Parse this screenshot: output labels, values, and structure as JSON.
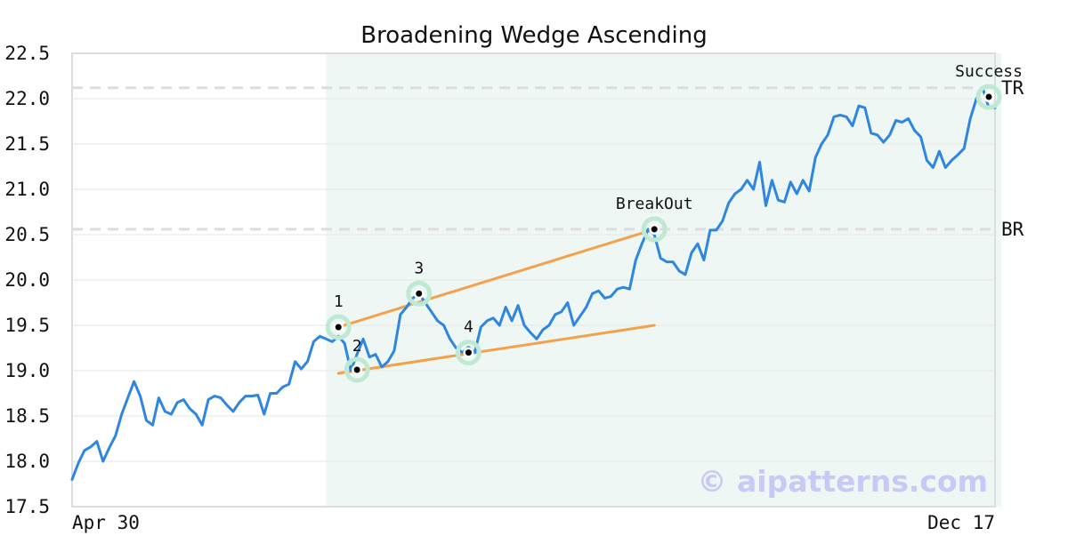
{
  "chart_data": {
    "type": "line",
    "title": "Broadening Wedge Ascending",
    "xlabel": "",
    "ylabel": "",
    "ylim": [
      17.5,
      22.5
    ],
    "yticks": [
      "17.5",
      "18.0",
      "18.5",
      "19.0",
      "19.5",
      "20.0",
      "20.5",
      "21.0",
      "21.5",
      "22.0",
      "22.5"
    ],
    "x_labels": {
      "start": "Apr 30",
      "end": "Dec 17"
    },
    "grid": "horizontal",
    "colors": {
      "price_line": "#2f86e0",
      "trend_line": "#f5a04a",
      "highlight": "#eef7f3",
      "marker_halo": "#bfe9d3",
      "level_line": "#dddddd",
      "frame": "#dddddd",
      "watermark": "#c9c9f5"
    },
    "series": [
      {
        "values": [
          17.8,
          17.98,
          18.12,
          18.16,
          18.22,
          18.0,
          18.15,
          18.28,
          18.52,
          18.7,
          18.88,
          18.72,
          18.45,
          18.4,
          18.7,
          18.55,
          18.52,
          18.65,
          18.68,
          18.58,
          18.52,
          18.4,
          18.68,
          18.72,
          18.7,
          18.62,
          18.55,
          18.65,
          18.72,
          18.72,
          18.73,
          18.52,
          18.75,
          18.75,
          18.82,
          18.85,
          19.1,
          19.02,
          19.1,
          19.32,
          19.38,
          19.35,
          19.32,
          19.38,
          19.3,
          19.0,
          19.18,
          19.35,
          19.15,
          19.18,
          19.04,
          19.1,
          19.22,
          19.62,
          19.7,
          19.8,
          19.85,
          19.75,
          19.65,
          19.55,
          19.5,
          19.35,
          19.25,
          19.2,
          19.26,
          19.2,
          19.48,
          19.55,
          19.58,
          19.5,
          19.7,
          19.55,
          19.72,
          19.5,
          19.42,
          19.35,
          19.45,
          19.5,
          19.62,
          19.65,
          19.75,
          19.5,
          19.6,
          19.7,
          19.85,
          19.88,
          19.8,
          19.82,
          19.9,
          19.92,
          19.9,
          20.22,
          20.4,
          20.56,
          20.5,
          20.24,
          20.2,
          20.2,
          20.1,
          20.06,
          20.3,
          20.4,
          20.22,
          20.55,
          20.55,
          20.65,
          20.85,
          20.95,
          21.0,
          21.1,
          21.0,
          21.3,
          20.82,
          21.1,
          20.88,
          20.86,
          21.08,
          20.95,
          21.1,
          20.98,
          21.35,
          21.5,
          21.6,
          21.8,
          21.82,
          21.8,
          21.7,
          21.92,
          21.9,
          21.62,
          21.6,
          21.52,
          21.6,
          21.76,
          21.74,
          21.78,
          21.65,
          21.58,
          21.32,
          21.24,
          21.42,
          21.24,
          21.32,
          21.38,
          21.45,
          21.78,
          22.0,
          22.12,
          21.9,
          21.9
        ]
      }
    ],
    "highlight_region": {
      "start_index": 41,
      "end_index": 150
    },
    "trend_lines": [
      {
        "from": [
          43,
          19.48
        ],
        "to": [
          94,
          20.56
        ]
      },
      {
        "from": [
          43,
          18.97
        ],
        "to": [
          94,
          19.5
        ]
      }
    ],
    "points": [
      {
        "label": "1",
        "index": 43,
        "value": 19.48
      },
      {
        "label": "2",
        "index": 46,
        "value": 19.01
      },
      {
        "label": "3",
        "index": 56,
        "value": 19.85
      },
      {
        "label": "4",
        "index": 64,
        "value": 19.2
      },
      {
        "label": "BreakOut",
        "index": 94,
        "value": 20.56
      },
      {
        "label": "Success",
        "index": 148,
        "value": 22.02
      }
    ],
    "levels": [
      {
        "label": "TR",
        "value": 22.12
      },
      {
        "label": "BR",
        "value": 20.56
      }
    ],
    "watermark": "© aipatterns.com"
  }
}
